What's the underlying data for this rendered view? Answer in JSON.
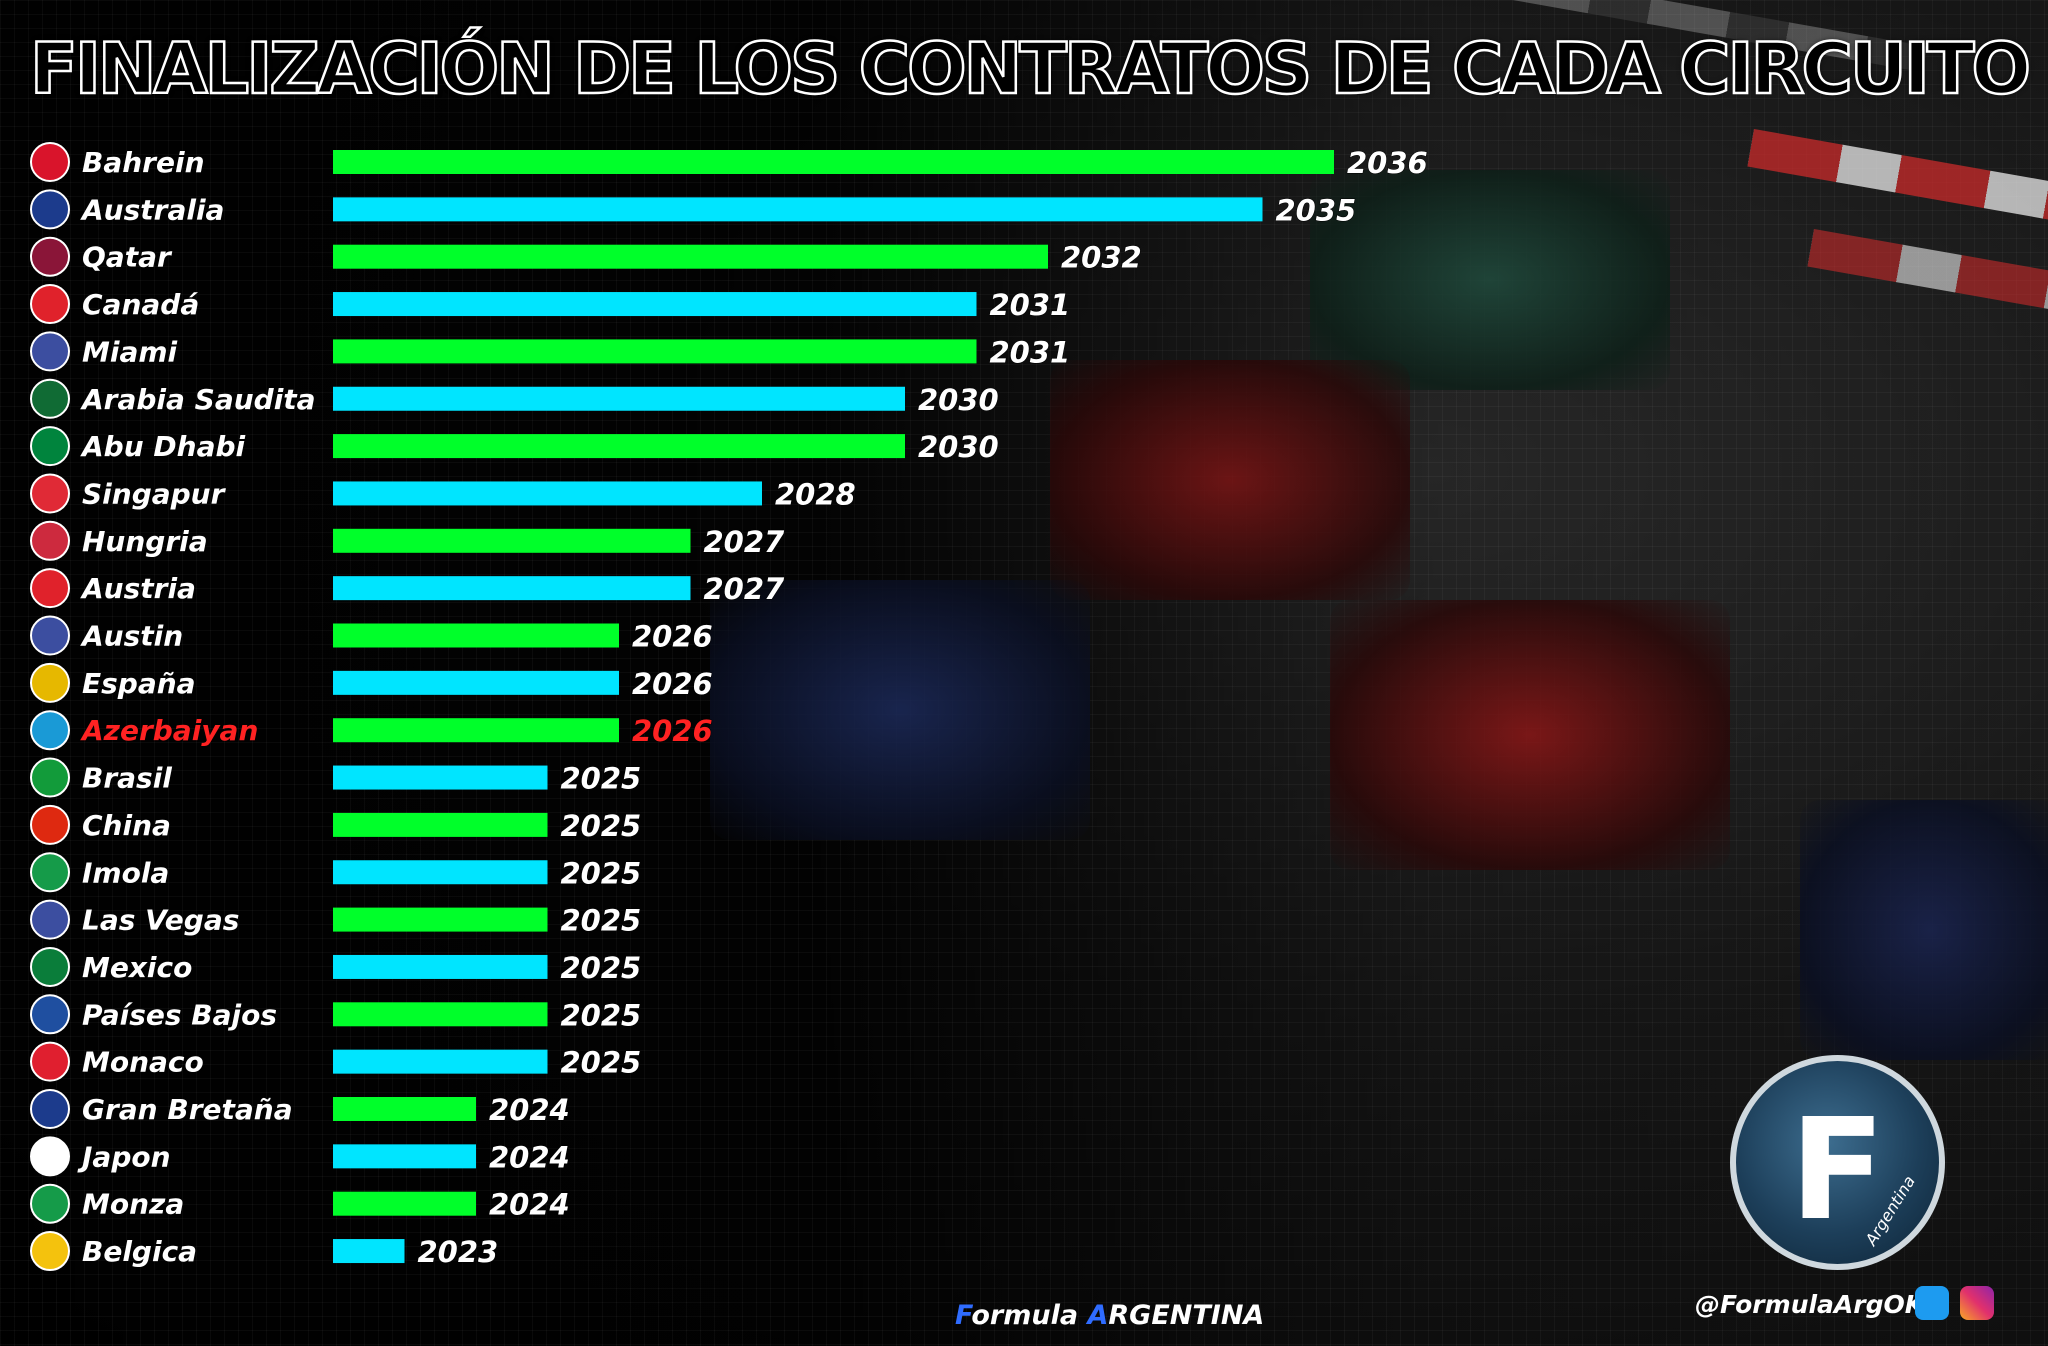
{
  "title": "FINALIZACIÓN DE LOS CONTRATOS DE CADA CIRCUITO",
  "colors": {
    "green": "#00ff2a",
    "cyan": "#00e5ff",
    "highlight": "#ff2222",
    "label": "#ffffff"
  },
  "chart_data": {
    "type": "bar",
    "orientation": "horizontal",
    "title": "FINALIZACIÓN DE LOS CONTRATOS DE CADA CIRCUITO",
    "xlim": [
      2022,
      2036
    ],
    "highlight": "Azerbaiyan",
    "bar_colors": "alternating green / cyan",
    "categories": [
      "Bahrein",
      "Australia",
      "Qatar",
      "Canadá",
      "Miami",
      "Arabia Saudita",
      "Abu Dhabi",
      "Singapur",
      "Hungria",
      "Austria",
      "Austin",
      "España",
      "Azerbaiyan",
      "Brasil",
      "China",
      "Imola",
      "Las Vegas",
      "Mexico",
      "Países Bajos",
      "Monaco",
      "Gran Bretaña",
      "Japon",
      "Monza",
      "Belgica"
    ],
    "values": [
      2036,
      2035,
      2032,
      2031,
      2031,
      2030,
      2030,
      2028,
      2027,
      2027,
      2026,
      2026,
      2026,
      2025,
      2025,
      2025,
      2025,
      2025,
      2025,
      2025,
      2024,
      2024,
      2024,
      2023
    ],
    "flag_icons": [
      "bahrain-flag-icon",
      "australia-flag-icon",
      "qatar-flag-icon",
      "canada-flag-icon",
      "usa-flag-icon",
      "saudi-arabia-flag-icon",
      "uae-flag-icon",
      "singapore-flag-icon",
      "hungary-flag-icon",
      "austria-flag-icon",
      "usa-flag-icon",
      "spain-flag-icon",
      "azerbaijan-flag-icon",
      "brazil-flag-icon",
      "china-flag-icon",
      "italy-flag-icon",
      "usa-flag-icon",
      "mexico-flag-icon",
      "netherlands-flag-icon",
      "monaco-flag-icon",
      "uk-flag-icon",
      "japan-flag-icon",
      "italy-flag-icon",
      "belgium-flag-icon"
    ]
  },
  "footer": {
    "brand_first": "F",
    "brand_rest1": "ormula ",
    "brand_accent": "A",
    "brand_rest2": "RGENTINA",
    "handle": "@FormulaArgOK"
  },
  "logo": {
    "letter": "F",
    "sub": "Argentina"
  },
  "icons": {
    "twitter": "twitter-icon",
    "instagram": "instagram-icon"
  }
}
